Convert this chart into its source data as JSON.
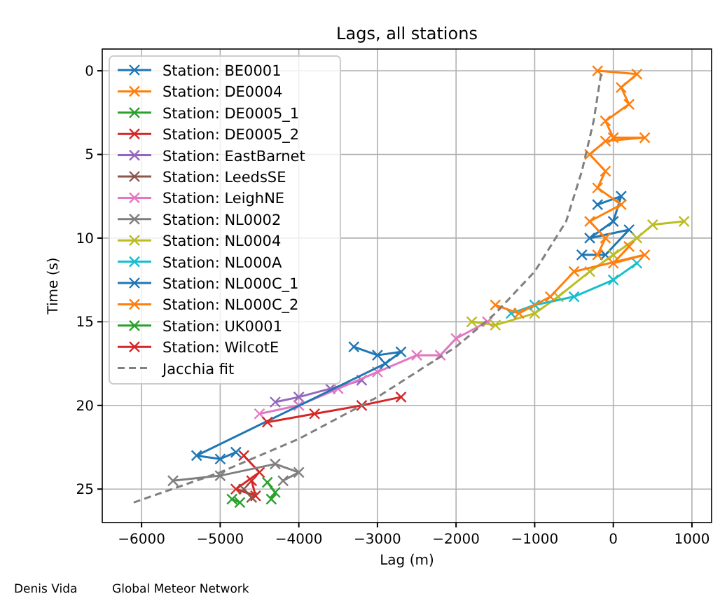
{
  "chart_data": {
    "type": "line",
    "title": "Lags, all stations",
    "xlabel": "Lag (m)",
    "ylabel": "Time (s)",
    "xlim": [
      -6500,
      1250
    ],
    "ylim": [
      27,
      -1.3
    ],
    "xticks": [
      {
        "value": -6000,
        "label": "−6000"
      },
      {
        "value": -5000,
        "label": "−5000"
      },
      {
        "value": -4000,
        "label": "−4000"
      },
      {
        "value": -3000,
        "label": "−3000"
      },
      {
        "value": -2000,
        "label": "−2000"
      },
      {
        "value": -1000,
        "label": "−1000"
      },
      0,
      1000
    ],
    "yticks": [
      0,
      5,
      10,
      15,
      20,
      25
    ],
    "grid": true,
    "legend": "top left",
    "marker": "cross",
    "line_style": "solid",
    "annotations": [
      "Denis Vida",
      "Global Meteor Network"
    ],
    "series": [
      {
        "name": "Station: BE0001",
        "color": "#1f77b4",
        "x": [
          -200,
          100,
          0,
          -300,
          200,
          -100,
          -400
        ],
        "values": [
          8,
          7.5,
          9,
          10,
          9.5,
          11,
          11
        ]
      },
      {
        "name": "Station: DE0004",
        "color": "#ff7f0e",
        "x": [
          -200,
          300,
          100,
          200,
          -100,
          0,
          400,
          -100,
          -300,
          -100,
          -200,
          100,
          -300,
          -100,
          -200
        ],
        "values": [
          0,
          0.2,
          1,
          2,
          3,
          4,
          4,
          4.2,
          5,
          6,
          7,
          8,
          9,
          10,
          11
        ]
      },
      {
        "name": "Station: DE0005_1",
        "color": "#2ca02c",
        "x": [
          -4850,
          -4750
        ],
        "values": [
          25.6,
          25.8
        ]
      },
      {
        "name": "Station: DE0005_2",
        "color": "#d62728",
        "x": [
          -4700,
          -4500,
          -4800,
          -4550,
          -4600
        ],
        "values": [
          23,
          24,
          25,
          25.4,
          24.5
        ]
      },
      {
        "name": "Station: EastBarnet",
        "color": "#9467bd",
        "x": [
          -3200,
          -3600,
          -4000,
          -4300
        ],
        "values": [
          18.5,
          19,
          19.5,
          19.8
        ]
      },
      {
        "name": "Station: LeedsSE",
        "color": "#8c564b",
        "x": [
          -4600,
          -4700
        ],
        "values": [
          25.5,
          25
        ]
      },
      {
        "name": "Station: LeighNE",
        "color": "#e377c2",
        "x": [
          -1600,
          -2000,
          -2200,
          -2500,
          -3000,
          -3500,
          -4000,
          -4500
        ],
        "values": [
          15,
          16,
          17,
          17,
          18,
          19,
          20,
          20.5
        ]
      },
      {
        "name": "Station: NL0002",
        "color": "#7f7f7f",
        "x": [
          -5600,
          -5000,
          -4300,
          -4000,
          -4200
        ],
        "values": [
          24.5,
          24.2,
          23.5,
          24,
          24.5
        ]
      },
      {
        "name": "Station: NL0004",
        "color": "#bcbd22",
        "x": [
          900,
          500,
          300,
          0,
          -300,
          -700,
          -1000,
          -1500,
          -1800
        ],
        "values": [
          9,
          9.2,
          10,
          11,
          12,
          13.5,
          14.5,
          15.2,
          15
        ]
      },
      {
        "name": "Station: NL000A",
        "color": "#17becf",
        "x": [
          300,
          0,
          -500,
          -1000,
          -1300
        ],
        "values": [
          11.5,
          12.5,
          13.5,
          14,
          14.5
        ]
      },
      {
        "name": "Station: NL000C_1",
        "color": "#1f77b4",
        "x": [
          -3300,
          -3000,
          -2700,
          -2900,
          -5300,
          -5000,
          -4800
        ],
        "values": [
          16.5,
          17,
          16.8,
          17.5,
          23,
          23.2,
          22.8
        ]
      },
      {
        "name": "Station: NL000C_2",
        "color": "#ff7f0e",
        "x": [
          200,
          0,
          400,
          -500,
          -800,
          -1200,
          -1500
        ],
        "values": [
          10.5,
          11.5,
          11,
          12,
          13.5,
          14.5,
          14
        ]
      },
      {
        "name": "Station: UK0001",
        "color": "#2ca02c",
        "x": [
          -4400,
          -4300,
          -4350
        ],
        "values": [
          24.6,
          25.2,
          25.6
        ]
      },
      {
        "name": "Station: WilcotE",
        "color": "#d62728",
        "x": [
          -2700,
          -3200,
          -3800,
          -4400
        ],
        "values": [
          19.5,
          20,
          20.5,
          21
        ]
      },
      {
        "name": "Jacchia fit",
        "color": "#808080",
        "marker": "none",
        "line_style": "dashed",
        "x": [
          -6100,
          -5000,
          -4000,
          -3000,
          -2000,
          -1500,
          -1000,
          -600,
          -400,
          -250,
          -150
        ],
        "values": [
          25.8,
          24,
          22,
          19.5,
          16.5,
          14.5,
          12,
          9,
          6,
          3,
          0
        ]
      }
    ]
  }
}
